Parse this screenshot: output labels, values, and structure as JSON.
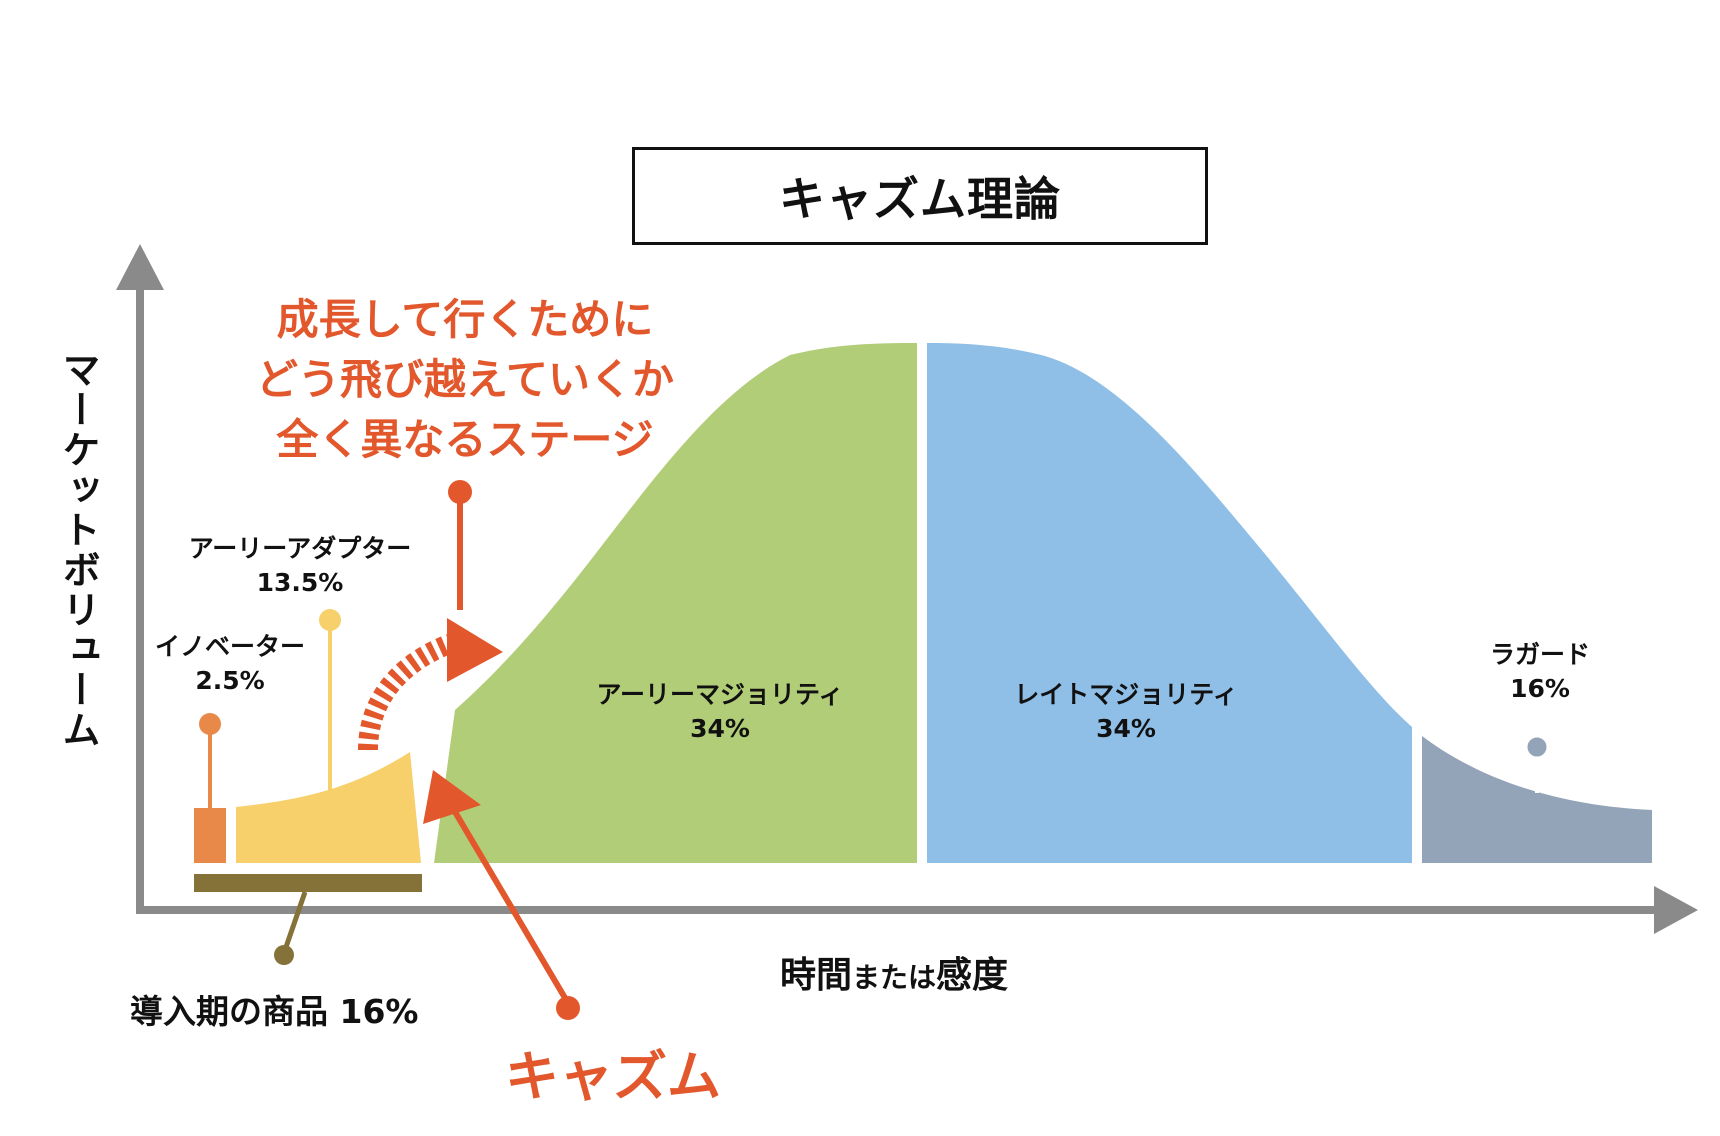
{
  "title": "キャズム理論",
  "y_axis_label": "マーケットボリューム",
  "x_axis_label": {
    "main1": "時間",
    "mid": "または",
    "main2": "感度"
  },
  "chasm_message": [
    "成長して行くために",
    "どう飛び越えていくか",
    "全く異なるステージ"
  ],
  "chasm_label": "キャズム",
  "intro_label": "導入期の商品 16%",
  "segments": [
    {
      "name": "イノベーター",
      "percent": "2.5%",
      "color": "#e8894a"
    },
    {
      "name": "アーリーアダプター",
      "percent": "13.5%",
      "color": "#f7d06b"
    },
    {
      "name": "アーリーマジョリティ",
      "percent": "34%",
      "color": "#b2cd78"
    },
    {
      "name": "レイトマジョリティ",
      "percent": "34%",
      "color": "#8fbfe6"
    },
    {
      "name": "ラガード",
      "percent": "16%",
      "color": "#93a3b8"
    }
  ],
  "colors": {
    "accent": "#e2572b",
    "axis": "#8a8a8a",
    "intro_bar": "#857238"
  }
}
